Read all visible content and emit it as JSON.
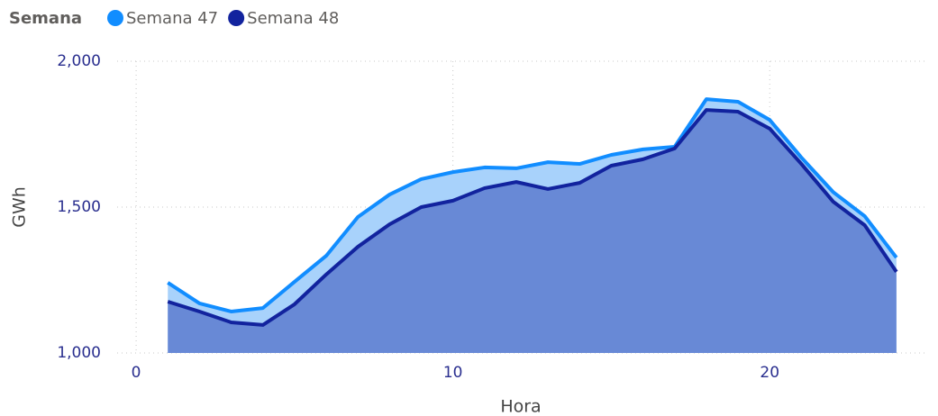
{
  "chart_data": {
    "type": "area",
    "legend_title": "Semana",
    "x_label": "Hora",
    "y_label": "GWh",
    "x": [
      1,
      2,
      3,
      4,
      5,
      6,
      7,
      8,
      9,
      10,
      11,
      12,
      13,
      14,
      15,
      16,
      17,
      18,
      19,
      20,
      21,
      22,
      23,
      24
    ],
    "series": [
      {
        "name": "Semana 47",
        "color": "#118dff",
        "fill": "#a8d2fb",
        "values": [
          1241,
          1170,
          1142,
          1154,
          1244,
          1333,
          1466,
          1543,
          1596,
          1620,
          1636,
          1633,
          1654,
          1648,
          1679,
          1698,
          1707,
          1870,
          1861,
          1799,
          1670,
          1552,
          1469,
          1327
        ]
      },
      {
        "name": "Semana 48",
        "color": "#12239e",
        "fill": "#6889d6",
        "values": [
          1176,
          1142,
          1105,
          1096,
          1167,
          1269,
          1364,
          1441,
          1500,
          1522,
          1565,
          1586,
          1562,
          1583,
          1642,
          1664,
          1701,
          1833,
          1827,
          1769,
          1648,
          1519,
          1438,
          1278
        ]
      }
    ],
    "xlim": [
      -0.6,
      25
    ],
    "ylim": [
      1000,
      2000
    ],
    "xticks": [
      0,
      10,
      20
    ],
    "yticks": [
      {
        "value": 1000,
        "label": "1,000"
      },
      {
        "value": 1500,
        "label": "1,500"
      },
      {
        "value": 2000,
        "label": "2,000"
      }
    ],
    "grid": true
  }
}
